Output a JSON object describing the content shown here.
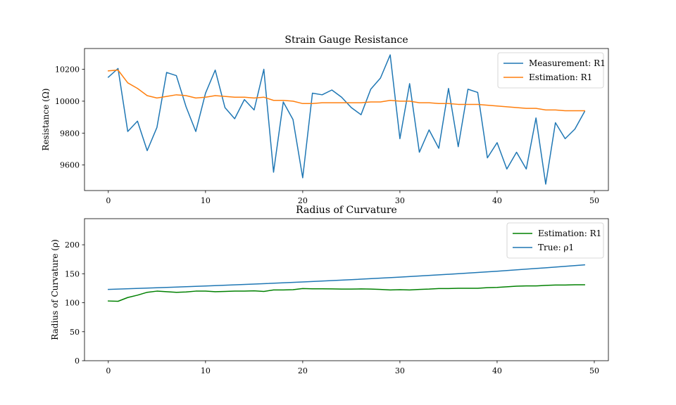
{
  "chart_data": [
    {
      "type": "line",
      "title": "Strain Gauge Resistance",
      "xlabel": "",
      "ylabel": "Resistance (Ω)",
      "xlim": [
        -2.45,
        51.45
      ],
      "ylim": [
        9440,
        10330
      ],
      "xticks": [
        0,
        10,
        20,
        30,
        40,
        50
      ],
      "yticks": [
        9600,
        9800,
        10000,
        10200
      ],
      "grid": false,
      "legend_position": "top-right",
      "series": [
        {
          "name": "Measurement: R1",
          "color": "#1f77b4",
          "x": [
            0,
            1,
            2,
            3,
            4,
            5,
            6,
            7,
            8,
            9,
            10,
            11,
            12,
            13,
            14,
            15,
            16,
            17,
            18,
            19,
            20,
            21,
            22,
            23,
            24,
            25,
            26,
            27,
            28,
            29,
            30,
            31,
            32,
            33,
            34,
            35,
            36,
            37,
            38,
            39,
            40,
            41,
            42,
            43,
            44,
            45,
            46,
            47,
            48,
            49
          ],
          "values": [
            10150,
            10205,
            9810,
            9875,
            9690,
            9835,
            10180,
            10160,
            9965,
            9810,
            10050,
            10195,
            9960,
            9890,
            10010,
            9945,
            10200,
            9555,
            9995,
            9885,
            9520,
            10050,
            10040,
            10070,
            10025,
            9960,
            9915,
            10075,
            10145,
            10290,
            9765,
            10110,
            9680,
            9820,
            9705,
            10080,
            9715,
            10075,
            10055,
            9645,
            9740,
            9575,
            9680,
            9575,
            9895,
            9480,
            9865,
            9765,
            9825,
            9935
          ]
        },
        {
          "name": "Estimation: R1",
          "color": "#ff7f0e",
          "x": [
            0,
            1,
            2,
            3,
            4,
            5,
            6,
            7,
            8,
            9,
            10,
            11,
            12,
            13,
            14,
            15,
            16,
            17,
            18,
            19,
            20,
            21,
            22,
            23,
            24,
            25,
            26,
            27,
            28,
            29,
            30,
            31,
            32,
            33,
            34,
            35,
            36,
            37,
            38,
            39,
            40,
            41,
            42,
            43,
            44,
            45,
            46,
            47,
            48,
            49
          ],
          "values": [
            10190,
            10195,
            10115,
            10080,
            10035,
            10020,
            10030,
            10040,
            10035,
            10020,
            10025,
            10035,
            10030,
            10025,
            10025,
            10020,
            10025,
            10005,
            10005,
            10000,
            9985,
            9985,
            9990,
            9990,
            9990,
            9990,
            9990,
            9995,
            9995,
            10005,
            10000,
            10000,
            9990,
            9990,
            9985,
            9985,
            9980,
            9980,
            9980,
            9975,
            9970,
            9965,
            9960,
            9955,
            9955,
            9945,
            9945,
            9940,
            9940,
            9940
          ]
        }
      ]
    },
    {
      "type": "line",
      "title": "Radius of Curvature",
      "xlabel": "",
      "ylabel": "Radius of Curvature (ρ)",
      "xlim": [
        -2.45,
        51.45
      ],
      "ylim": [
        0,
        245
      ],
      "xticks": [
        0,
        10,
        20,
        30,
        40,
        50
      ],
      "yticks": [
        0,
        50,
        100,
        150,
        200
      ],
      "grid": false,
      "legend_position": "top-right",
      "series": [
        {
          "name": "Estimation: R1",
          "color": "#008000",
          "x": [
            0,
            1,
            2,
            3,
            4,
            5,
            6,
            7,
            8,
            9,
            10,
            11,
            12,
            13,
            14,
            15,
            16,
            17,
            18,
            19,
            20,
            21,
            22,
            23,
            24,
            25,
            26,
            27,
            28,
            29,
            30,
            31,
            32,
            33,
            34,
            35,
            36,
            37,
            38,
            39,
            40,
            41,
            42,
            43,
            44,
            45,
            46,
            47,
            48,
            49
          ],
          "values": [
            103,
            102.5,
            109,
            113,
            118,
            120,
            119,
            118,
            118.5,
            120,
            120,
            119,
            119.5,
            120,
            120,
            120.5,
            119.5,
            122,
            122,
            122.5,
            124.5,
            124,
            124,
            123.8,
            123.5,
            123.5,
            123.8,
            123.5,
            123,
            122,
            122.5,
            122,
            123,
            123.5,
            124.5,
            124.5,
            125,
            125,
            125,
            126,
            126.5,
            127.5,
            128.5,
            129,
            129,
            130,
            130.5,
            130.5,
            131,
            131
          ]
        },
        {
          "name": "True: ρ1",
          "color": "#1f77b4",
          "x": [
            0,
            5,
            10,
            15,
            20,
            25,
            30,
            35,
            40,
            45,
            49
          ],
          "values": [
            123,
            125.8,
            128.9,
            132.2,
            135.8,
            139.8,
            144.2,
            149.1,
            154.4,
            160.3,
            165.4
          ]
        }
      ]
    }
  ]
}
